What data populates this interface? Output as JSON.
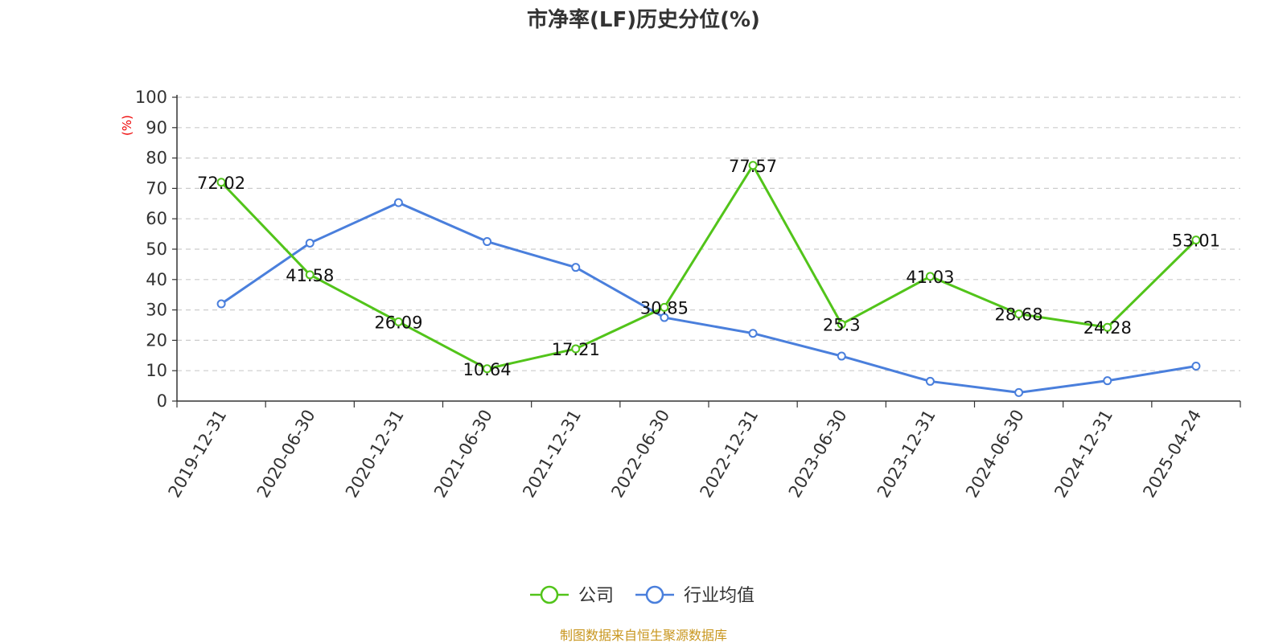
{
  "chart_data": {
    "type": "line",
    "title": "市净率(LF)历史分位(%)",
    "ylabel": "(%)",
    "ylim": [
      0,
      100
    ],
    "yticks": [
      0,
      10,
      20,
      30,
      40,
      50,
      60,
      70,
      80,
      90,
      100
    ],
    "grid": true,
    "legend_position": "bottom",
    "categories": [
      "2019-12-31",
      "2020-06-30",
      "2020-12-31",
      "2021-06-30",
      "2021-12-31",
      "2022-06-30",
      "2022-12-31",
      "2023-06-30",
      "2023-12-31",
      "2024-06-30",
      "2024-12-31",
      "2025-04-24"
    ],
    "series": [
      {
        "name": "公司",
        "color": "#52c41a",
        "show_labels": true,
        "values": [
          72.02,
          41.58,
          26.09,
          10.64,
          17.21,
          30.85,
          77.57,
          25.3,
          41.03,
          28.68,
          24.28,
          53.01
        ]
      },
      {
        "name": "行业均值",
        "color": "#4a7fdc",
        "show_labels": false,
        "values": [
          32,
          52,
          65.3,
          52.5,
          44,
          27.5,
          22.3,
          14.8,
          6.5,
          2.8,
          6.7,
          11.5
        ]
      }
    ],
    "source": "制图数据来自恒生聚源数据库"
  }
}
